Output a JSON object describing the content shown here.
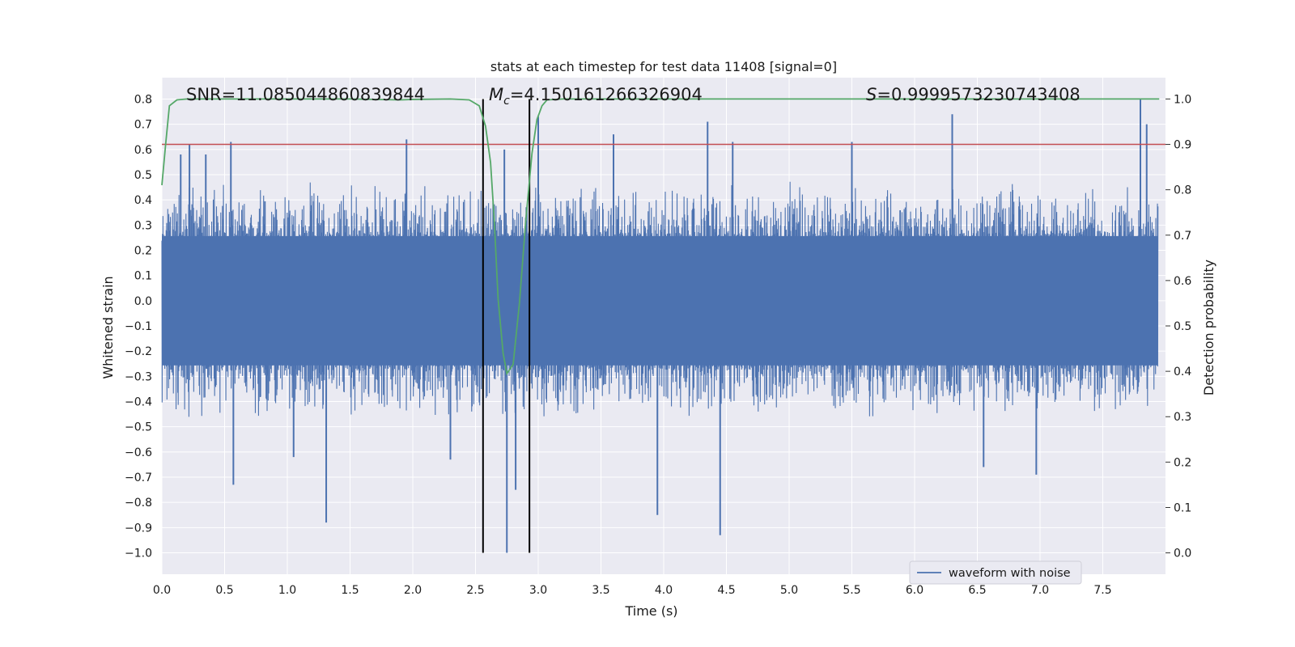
{
  "chart_data": {
    "type": "line",
    "title": "stats at each timestep for test data 11408 [signal=0]",
    "xlabel": "Time (s)",
    "ylabel": "Whitened strain",
    "y2label": "Detection probability",
    "xlim": [
      0.0,
      8.0
    ],
    "ylim": [
      -1.085,
      0.885
    ],
    "y2lim": [
      -0.047,
      1.047
    ],
    "x_ticks": [
      "0.0",
      "0.5",
      "1.0",
      "1.5",
      "2.0",
      "2.5",
      "3.0",
      "3.5",
      "4.0",
      "4.5",
      "5.0",
      "5.5",
      "6.0",
      "6.5",
      "7.0",
      "7.5"
    ],
    "y_ticks": [
      "−1.0",
      "−0.9",
      "−0.8",
      "−0.7",
      "−0.6",
      "−0.5",
      "−0.4",
      "−0.3",
      "−0.2",
      "−0.1",
      "0.0",
      "0.1",
      "0.2",
      "0.3",
      "0.4",
      "0.5",
      "0.6",
      "0.7",
      "0.8"
    ],
    "y2_ticks": [
      "0.0",
      "0.1",
      "0.2",
      "0.3",
      "0.4",
      "0.5",
      "0.6",
      "0.7",
      "0.8",
      "0.9",
      "1.0"
    ],
    "grid": true,
    "legend_position": "lower-right",
    "annotations": {
      "snr": "SNR=11.085044860839844",
      "mc_symbol": "M",
      "mc_sub": "c",
      "mc_value": "=4.150161266326904",
      "s_symbol": "S",
      "s_value": "=0.9999573230743408"
    },
    "threshold_line": {
      "axis": "y2",
      "value": 0.9,
      "color": "#c44e52"
    },
    "window_lines": {
      "x": [
        2.56,
        2.93
      ],
      "y_range": [
        -1.0,
        0.8
      ],
      "color": "#000000"
    },
    "series": [
      {
        "name": "waveform with noise",
        "axis": "y",
        "color": "#4c72b0",
        "kind": "noise",
        "baseline_amplitude": 0.27,
        "envelope_max": 0.48,
        "peaks": [
          {
            "x": 0.15,
            "y": 0.58
          },
          {
            "x": 0.22,
            "y": 0.62
          },
          {
            "x": 0.35,
            "y": 0.58
          },
          {
            "x": 0.55,
            "y": 0.63
          },
          {
            "x": 0.57,
            "y": -0.73
          },
          {
            "x": 1.05,
            "y": -0.62
          },
          {
            "x": 1.31,
            "y": -0.88
          },
          {
            "x": 1.95,
            "y": 0.64
          },
          {
            "x": 2.3,
            "y": -0.63
          },
          {
            "x": 2.73,
            "y": 0.6
          },
          {
            "x": 2.75,
            "y": -1.0
          },
          {
            "x": 2.82,
            "y": -0.75
          },
          {
            "x": 3.0,
            "y": 0.73
          },
          {
            "x": 3.6,
            "y": 0.66
          },
          {
            "x": 3.95,
            "y": -0.85
          },
          {
            "x": 4.35,
            "y": 0.71
          },
          {
            "x": 4.45,
            "y": -0.93
          },
          {
            "x": 4.55,
            "y": 0.63
          },
          {
            "x": 5.5,
            "y": 0.63
          },
          {
            "x": 6.3,
            "y": 0.74
          },
          {
            "x": 6.55,
            "y": -0.66
          },
          {
            "x": 6.97,
            "y": -0.69
          },
          {
            "x": 7.8,
            "y": 0.8
          },
          {
            "x": 7.85,
            "y": 0.7
          }
        ]
      },
      {
        "name": "",
        "axis": "y2",
        "color": "#55a868",
        "x": [
          0.0,
          0.03,
          0.06,
          0.12,
          0.2,
          0.5,
          1.0,
          1.5,
          1.9,
          2.0,
          2.3,
          2.45,
          2.53,
          2.58,
          2.62,
          2.65,
          2.68,
          2.72,
          2.75,
          2.8,
          2.85,
          2.9,
          2.95,
          2.99,
          3.03,
          3.07,
          3.2,
          4.0,
          5.0,
          6.0,
          7.0,
          7.95
        ],
        "values": [
          0.81,
          0.9,
          0.985,
          0.998,
          1.0,
          1.0,
          1.0,
          1.0,
          0.998,
          0.999,
          1.0,
          0.998,
          0.985,
          0.94,
          0.86,
          0.73,
          0.56,
          0.44,
          0.395,
          0.415,
          0.55,
          0.73,
          0.88,
          0.955,
          0.985,
          0.998,
          1.0,
          1.0,
          1.0,
          1.0,
          1.0,
          1.0
        ]
      }
    ]
  }
}
